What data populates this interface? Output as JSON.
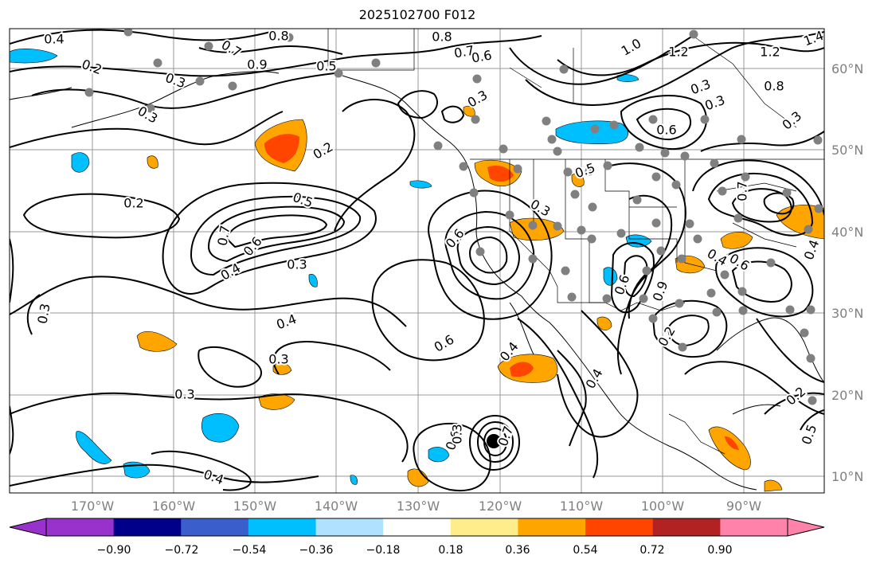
{
  "title": "2025102700 F012",
  "lat_labels": [
    "60°N",
    "50°N",
    "40°N",
    "30°N",
    "20°N",
    "10°N"
  ],
  "lon_labels": [
    "170°W",
    "160°W",
    "150°W",
    "140°W",
    "130°W",
    "120°W",
    "110°W",
    "100°W",
    "90°W"
  ],
  "colorbar": {
    "colors": [
      "#9932CC",
      "#00008B",
      "#3A5FCD",
      "#00BFFF",
      "#B0E2FF",
      "#FFFFFF",
      "#FFEC8B",
      "#FFA500",
      "#FF4500",
      "#B22222",
      "#FF82AB"
    ],
    "tick_labels": [
      "−0.90",
      "−0.72",
      "−0.54",
      "−0.36",
      "−0.18",
      "0.18",
      "0.36",
      "0.54",
      "0.72",
      "0.90"
    ],
    "extend": "both"
  },
  "contour_labels": [
    "0.4",
    "0.8",
    "0.8",
    "0.7",
    "0.6",
    "0.5",
    "1.0",
    "1.2",
    "1.2",
    "1.4",
    "0.8",
    "0.2",
    "0.3",
    "0.3",
    "0.7",
    "0.9",
    "0.2",
    "0.5",
    "0.2",
    "0.3",
    "0.6",
    "0.3",
    "0.4",
    "0.7",
    "0.6",
    "0.4",
    "0.3",
    "0.5",
    "0.6",
    "0.3",
    "0.4",
    "0.3",
    "0.4",
    "0.4",
    "0.6",
    "0.3",
    "0.2",
    "0.3",
    "0.3",
    "0.6",
    "0.7",
    "0.4",
    "0.6",
    "0.9",
    "0.7",
    "0.6",
    "0.2",
    "0.5",
    "0.4",
    "0.3",
    "0.3"
  ],
  "colors": {
    "contour": "#000000",
    "grid": "#808080",
    "station": "#808080",
    "negative_fill": "#00BFFF",
    "positive_fill": "#FFA500",
    "strong_positive_fill": "#FF4500"
  }
}
